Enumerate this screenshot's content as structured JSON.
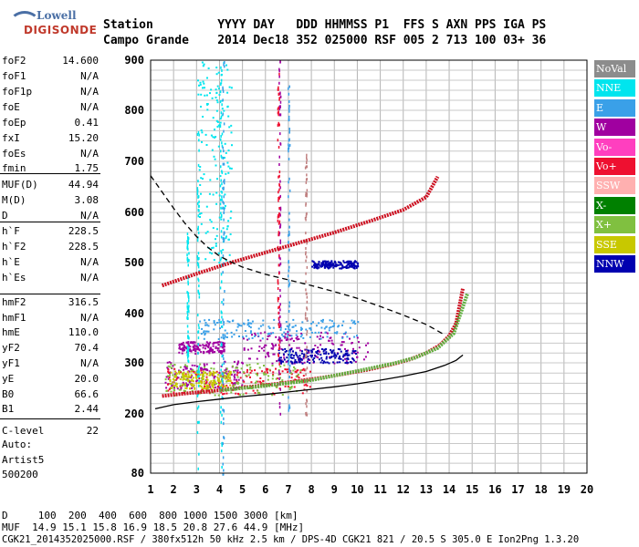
{
  "logo": {
    "line1": "Lowell",
    "line2": "DIGISONDE"
  },
  "header": {
    "row1": "Station         YYYY DAY   DDD HHMMSS P1  FFS S AXN PPS IGA PS",
    "row2": "Campo Grande    2014 Dec18 352 025000 RSF 005 2 713 100 03+ 36"
  },
  "params": [
    {
      "k": "foF2",
      "v": "14.600"
    },
    {
      "k": "foF1",
      "v": "N/A"
    },
    {
      "k": "foF1p",
      "v": "N/A"
    },
    {
      "k": "foE",
      "v": "N/A"
    },
    {
      "k": "foEp",
      "v": "0.41"
    },
    {
      "k": "fxI",
      "v": "15.20"
    },
    {
      "k": "foEs",
      "v": "N/A"
    },
    {
      "k": "fmin",
      "v": "1.75"
    },
    {
      "k": "MUF(D)",
      "v": "44.94"
    },
    {
      "k": "M(D)",
      "v": "3.08"
    },
    {
      "k": "D",
      "v": "N/A"
    },
    {
      "k": "h`F",
      "v": "228.5"
    },
    {
      "k": "h`F2",
      "v": "228.5"
    },
    {
      "k": "h`E",
      "v": "N/A"
    },
    {
      "k": "h`Es",
      "v": "N/A"
    },
    {
      "k": "hmF2",
      "v": "316.5"
    },
    {
      "k": "hmF1",
      "v": "N/A"
    },
    {
      "k": "hmE",
      "v": "110.0"
    },
    {
      "k": "yF2",
      "v": "70.4"
    },
    {
      "k": "yF1",
      "v": "N/A"
    },
    {
      "k": "yE",
      "v": "20.0"
    },
    {
      "k": "B0",
      "v": "66.6"
    },
    {
      "k": "B1",
      "v": "2.44"
    },
    {
      "k": "C-level",
      "v": "22"
    }
  ],
  "auto": {
    "line1": "Auto:",
    "line2": "Artist5",
    "line3": "500200"
  },
  "legend": [
    {
      "label": "NoVal",
      "color": "#8c8c8c"
    },
    {
      "label": "NNE",
      "color": "#00e5ee"
    },
    {
      "label": "E",
      "color": "#3aa0e8"
    },
    {
      "label": "W",
      "color": "#a000a0"
    },
    {
      "label": "Vo-",
      "color": "#ff3fbf"
    },
    {
      "label": "Vo+",
      "color": "#ee1030"
    },
    {
      "label": "SSW",
      "color": "#ffb0b0"
    },
    {
      "label": "X-",
      "color": "#008000"
    },
    {
      "label": "X+",
      "color": "#80c040"
    },
    {
      "label": "SSE",
      "color": "#c8c800"
    },
    {
      "label": "NNW",
      "color": "#0000b0"
    }
  ],
  "bottom": {
    "d_row": "D     100  200  400  600  800 1000 1500 3000 [km]",
    "muf_row": "MUF  14.9 15.1 15.8 16.9 18.5 20.8 27.6 44.9 [MHz]",
    "info_row": "CGK21_2014352025000.RSF / 380fx512h 50 kHz 2.5 km / DPS-4D CGK21 821 / 20.5 S 305.0 E Ion2Png 1.3.20"
  },
  "chart_data": {
    "type": "scatter",
    "title": "",
    "xlabel": "",
    "ylabel": "",
    "xlim": [
      1,
      20
    ],
    "ylim": [
      80,
      900
    ],
    "yscale": "custom",
    "xticks": [
      1,
      2,
      3,
      4,
      5,
      6,
      7,
      8,
      9,
      10,
      11,
      12,
      13,
      14,
      15,
      16,
      17,
      18,
      19,
      20
    ],
    "yticks": [
      80,
      200,
      300,
      400,
      500,
      600,
      700,
      800,
      900
    ],
    "grid": true,
    "curves": [
      {
        "name": "o_trace",
        "color": "#cc1020",
        "style": "trace",
        "x": [
          1.5,
          2.5,
          3.5,
          4.5,
          5.5,
          6.5,
          7.5,
          8.5,
          9.5,
          10.5,
          11.5,
          12.3,
          13.0,
          13.6,
          14.0,
          14.3,
          14.6
        ],
        "y": [
          235,
          240,
          244,
          249,
          254,
          259,
          265,
          271,
          279,
          287,
          297,
          307,
          320,
          336,
          355,
          380,
          450
        ]
      },
      {
        "name": "x_trace",
        "color": "#60b040",
        "style": "trace",
        "x": [
          4.0,
          6.0,
          8.0,
          10.0,
          11.5,
          12.5,
          13.5,
          14.2,
          14.8
        ],
        "y": [
          246,
          255,
          266,
          284,
          298,
          310,
          330,
          360,
          440
        ]
      },
      {
        "name": "f2_multi",
        "color": "#cc1020",
        "style": "trace",
        "x": [
          1.5,
          3.0,
          4.5,
          6.0,
          7.5,
          9.0,
          10.5,
          12.0,
          13.0,
          13.5
        ],
        "y": [
          455,
          478,
          500,
          520,
          540,
          560,
          582,
          605,
          630,
          670
        ]
      },
      {
        "name": "profile_solid",
        "color": "#000000",
        "style": "solid",
        "x": [
          1.2,
          2.0,
          3.0,
          4.0,
          5.0,
          6.0,
          7.0,
          8.0,
          9.0,
          10.0,
          11.0,
          12.0,
          13.0,
          13.8,
          14.3,
          14.6
        ],
        "y": [
          210,
          218,
          224,
          229,
          234,
          238,
          243,
          248,
          253,
          259,
          266,
          274,
          283,
          295,
          305,
          316
        ]
      },
      {
        "name": "profile_dashed",
        "color": "#000000",
        "style": "dashed",
        "x": [
          1.0,
          1.5,
          2.0,
          2.5,
          3.0,
          3.5,
          4.0,
          4.5,
          5.0,
          6.0,
          7.0,
          8.0,
          9.0,
          10.0,
          11.0,
          12.0,
          13.0,
          13.8
        ],
        "y": [
          672,
          640,
          608,
          578,
          552,
          530,
          513,
          501,
          491,
          477,
          466,
          455,
          443,
          430,
          414,
          397,
          378,
          357
        ]
      }
    ],
    "clouds": [
      {
        "name": "w_cluster_low",
        "color": "#a000a0",
        "x": [
          1.6,
          5.0
        ],
        "y": [
          250,
          305
        ]
      },
      {
        "name": "w_cluster_mid",
        "color": "#a000a0",
        "x": [
          2.2,
          4.2
        ],
        "y": [
          320,
          345
        ]
      },
      {
        "name": "w_cluster_high",
        "color": "#a000a0",
        "x": [
          5.0,
          10.5
        ],
        "y": [
          300,
          365
        ]
      },
      {
        "name": "vo_plus_low",
        "color": "#ee1030",
        "x": [
          1.6,
          8.0
        ],
        "y": [
          240,
          290
        ]
      },
      {
        "name": "x_plus_low",
        "color": "#80c040",
        "x": [
          1.6,
          7.5
        ],
        "y": [
          238,
          300
        ]
      },
      {
        "name": "sse_low",
        "color": "#c8c800",
        "x": [
          1.8,
          4.5
        ],
        "y": [
          250,
          285
        ]
      },
      {
        "name": "nnw_low",
        "color": "#0000b0",
        "x": [
          6.5,
          10.0
        ],
        "y": [
          300,
          330
        ]
      },
      {
        "name": "nnw_mid",
        "color": "#0000b0",
        "x": [
          8.0,
          10.0
        ],
        "y": [
          490,
          505
        ]
      },
      {
        "name": "nne_scatter",
        "color": "#00e5ee",
        "x": [
          3.0,
          4.5
        ],
        "y": [
          500,
          900
        ]
      },
      {
        "name": "e_mid",
        "color": "#3aa0e8",
        "x": [
          3.0,
          10.0
        ],
        "y": [
          350,
          390
        ]
      }
    ],
    "vlines": [
      {
        "x": 6.6,
        "color": "#a000a0",
        "y": [
          200,
          900
        ]
      },
      {
        "x": 6.55,
        "color": "#ee1030",
        "y": [
          300,
          880
        ]
      },
      {
        "x": 3.05,
        "color": "#00e5ee",
        "y": [
          80,
          760
        ]
      },
      {
        "x": 4.05,
        "color": "#00e5ee",
        "y": [
          80,
          900
        ]
      },
      {
        "x": 4.15,
        "color": "#3aa0e8",
        "y": [
          80,
          900
        ]
      },
      {
        "x": 7.0,
        "color": "#3aa0e8",
        "y": [
          200,
          900
        ]
      },
      {
        "x": 2.6,
        "color": "#00e5ee",
        "y": [
          300,
          560
        ]
      },
      {
        "x": 7.75,
        "color": "#c08080",
        "y": [
          200,
          720
        ]
      }
    ]
  }
}
